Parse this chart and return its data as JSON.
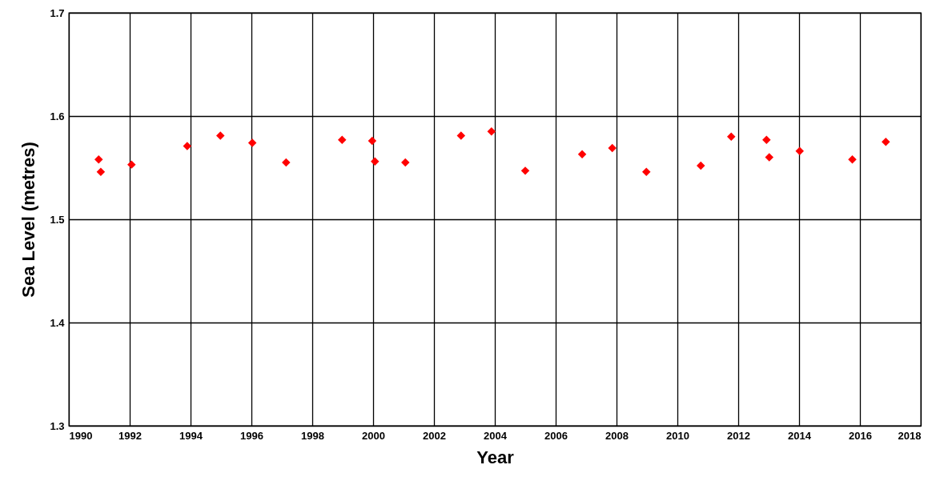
{
  "chart_data": {
    "type": "scatter",
    "xlabel": "Year",
    "ylabel": "Sea Level (metres)",
    "x": [
      1990.98,
      1991.05,
      1992.06,
      1993.89,
      1994.98,
      1996.03,
      1997.14,
      1998.98,
      1999.97,
      2000.06,
      2001.06,
      2002.89,
      2003.89,
      2005.0,
      2006.87,
      2007.86,
      2008.98,
      2010.77,
      2011.77,
      2012.93,
      2013.02,
      2014.02,
      2015.75,
      2016.85
    ],
    "series": [
      {
        "color": "#ff0000",
        "values": [
          1.558,
          1.546,
          1.553,
          1.571,
          1.581,
          1.574,
          1.555,
          1.577,
          1.576,
          1.556,
          1.555,
          1.581,
          1.585,
          1.547,
          1.563,
          1.569,
          1.546,
          1.552,
          1.58,
          1.577,
          1.56,
          1.566,
          1.558,
          1.575
        ]
      }
    ],
    "xlim": [
      1990,
      2018
    ],
    "xticks": [
      1990,
      1992,
      1994,
      1996,
      1998,
      2000,
      2002,
      2004,
      2006,
      2008,
      2010,
      2012,
      2014,
      2016,
      2018
    ],
    "ylim": [
      1.3,
      1.7
    ],
    "yticks": [
      1.3,
      1.4,
      1.5,
      1.6,
      1.7
    ],
    "grid": true,
    "marker": "diamond"
  }
}
